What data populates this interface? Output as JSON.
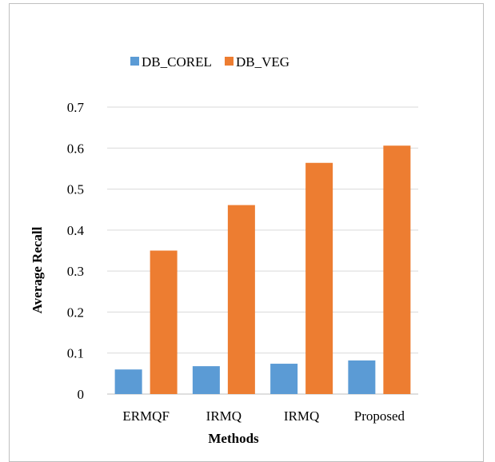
{
  "chart_data": {
    "type": "bar",
    "categories": [
      "ERMQF",
      "IRMQ",
      "IRMQ",
      "Proposed"
    ],
    "series": [
      {
        "name": "DB_COREL",
        "color": "#5b9bd5",
        "values": [
          0.06,
          0.068,
          0.074,
          0.082
        ]
      },
      {
        "name": "DB_VEG",
        "color": "#ed7d31",
        "values": [
          0.35,
          0.461,
          0.564,
          0.606
        ]
      }
    ],
    "title": "",
    "xlabel": "Methods",
    "ylabel": "Average Recall",
    "ylim": [
      0,
      0.7
    ],
    "yticks": [
      "0",
      "0.1",
      "0.2",
      "0.3",
      "0.4",
      "0.5",
      "0.6",
      "0.7"
    ],
    "grid": true,
    "legend_position": "top"
  }
}
